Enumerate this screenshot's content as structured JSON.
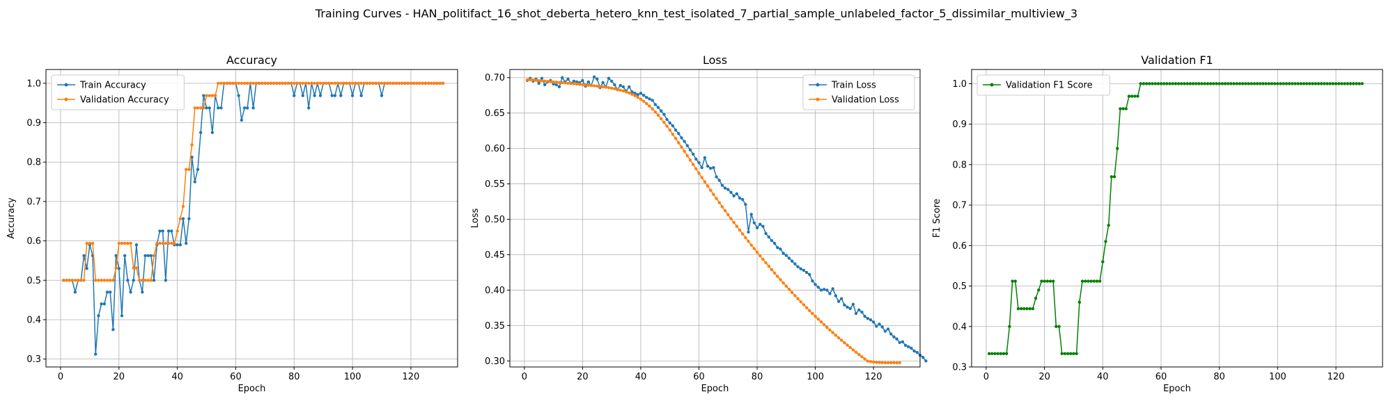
{
  "figure": {
    "suptitle": "Training Curves - HAN_politifact_16_shot_deberta_hetero_knn_test_isolated_7_partial_sample_unlabeled_factor_5_dissimilar_multiview_3"
  },
  "colors": {
    "blue": "#1f77b4",
    "orange": "#ff7f0e",
    "green": "#008000",
    "grid": "#b0b0b0"
  },
  "chart_data": [
    {
      "type": "line",
      "title": "Accuracy",
      "xlabel": "Epoch",
      "ylabel": "Accuracy",
      "xlim": [
        -5,
        136
      ],
      "ylim": [
        0.28,
        1.035
      ],
      "xticks": [
        0,
        20,
        40,
        60,
        80,
        100,
        120
      ],
      "yticks": [
        0.3,
        0.4,
        0.5,
        0.6,
        0.7,
        0.8,
        0.9,
        1.0
      ],
      "ytick_decimals": 1,
      "grid": true,
      "legend": "upper-left",
      "series": [
        {
          "name": "Train Accuracy",
          "color": "#1f77b4",
          "x_start": 1,
          "y": [
            0.5,
            0.5,
            0.5,
            0.5,
            0.47,
            0.5,
            0.5,
            0.5625,
            0.53,
            0.59,
            0.5625,
            0.3125,
            0.41,
            0.44,
            0.44,
            0.47,
            0.47,
            0.375,
            0.5625,
            0.53,
            0.41,
            0.5625,
            0.5,
            0.47,
            0.5,
            0.59,
            0.5,
            0.47,
            0.5625,
            0.5625,
            0.5625,
            0.5,
            0.59,
            0.625,
            0.625,
            0.5,
            0.625,
            0.625,
            0.59,
            0.59,
            0.59,
            0.6563,
            0.5938,
            0.6563,
            0.8125,
            0.75,
            0.7813,
            0.875,
            0.9688,
            0.9375,
            0.9375,
            0.875,
            0.9688,
            0.9375,
            0.9375,
            1,
            1,
            1,
            1,
            1,
            0.9688,
            0.9063,
            0.9375,
            0.9375,
            1,
            0.9375,
            1,
            1,
            1,
            1,
            1,
            1,
            1,
            1,
            1,
            1,
            1,
            1,
            1,
            0.9688,
            1,
            1,
            0.9688,
            1,
            0.9375,
            1,
            0.9688,
            1,
            0.9688,
            1,
            1,
            1,
            0.9688,
            0.9688,
            1,
            0.9688,
            1,
            1,
            1,
            0.9688,
            1,
            1,
            0.9688,
            1,
            1,
            1,
            1,
            1,
            1,
            0.9688,
            1,
            1,
            1,
            1,
            1,
            1,
            1,
            1,
            1,
            1,
            1,
            1,
            1,
            1,
            1,
            1,
            1,
            1,
            1,
            1,
            1
          ]
        },
        {
          "name": "Validation Accuracy",
          "color": "#ff7f0e",
          "x_start": 1,
          "y": [
            0.5,
            0.5,
            0.5,
            0.5,
            0.5,
            0.5,
            0.5,
            0.5,
            0.5938,
            0.5938,
            0.5938,
            0.5,
            0.5,
            0.5,
            0.5,
            0.5,
            0.5,
            0.5,
            0.5313,
            0.5938,
            0.5938,
            0.5938,
            0.5938,
            0.5938,
            0.5313,
            0.5313,
            0.5,
            0.5,
            0.5,
            0.5,
            0.5,
            0.5625,
            0.5938,
            0.5938,
            0.5938,
            0.5938,
            0.5938,
            0.5938,
            0.5938,
            0.625,
            0.6563,
            0.6875,
            0.7813,
            0.7813,
            0.8438,
            0.9375,
            0.9375,
            0.9375,
            0.9375,
            0.9688,
            0.9688,
            0.9688,
            0.9688,
            1,
            1,
            1,
            1,
            1,
            1,
            1,
            1,
            1,
            1,
            1,
            1,
            1,
            1,
            1,
            1,
            1,
            1,
            1,
            1,
            1,
            1,
            1,
            1,
            1,
            1,
            1,
            1,
            1,
            1,
            1,
            1,
            1,
            1,
            1,
            1,
            1,
            1,
            1,
            1,
            1,
            1,
            1,
            1,
            1,
            1,
            1,
            1,
            1,
            1,
            1,
            1,
            1,
            1,
            1,
            1,
            1,
            1,
            1,
            1,
            1,
            1,
            1,
            1,
            1,
            1,
            1,
            1,
            1,
            1,
            1,
            1,
            1,
            1,
            1,
            1,
            1,
            1
          ]
        }
      ]
    },
    {
      "type": "line",
      "title": "Loss",
      "xlabel": "Epoch",
      "ylabel": "Loss",
      "xlim": [
        -5,
        136
      ],
      "ylim": [
        0.2915,
        0.7115
      ],
      "xticks": [
        0,
        20,
        40,
        60,
        80,
        100,
        120
      ],
      "yticks": [
        0.3,
        0.35,
        0.4,
        0.45,
        0.5,
        0.55,
        0.6,
        0.65,
        0.7
      ],
      "ytick_decimals": 2,
      "grid": true,
      "legend": "upper-right",
      "series": [
        {
          "name": "Train Loss",
          "color": "#1f77b4",
          "x_start": 1,
          "y": [
            0.696,
            0.699,
            0.695,
            0.698,
            0.692,
            0.699,
            0.69,
            0.694,
            0.696,
            0.691,
            0.69,
            0.687,
            0.7,
            0.694,
            0.698,
            0.692,
            0.695,
            0.694,
            0.693,
            0.696,
            0.688,
            0.694,
            0.689,
            0.701,
            0.698,
            0.686,
            0.693,
            0.687,
            0.699,
            0.695,
            0.69,
            0.683,
            0.689,
            0.687,
            0.681,
            0.687,
            0.68,
            0.678,
            0.676,
            0.678,
            0.675,
            0.672,
            0.67,
            0.668,
            0.662,
            0.658,
            0.653,
            0.648,
            0.641,
            0.636,
            0.632,
            0.626,
            0.621,
            0.615,
            0.61,
            0.604,
            0.598,
            0.592,
            0.585,
            0.58,
            0.573,
            0.587,
            0.575,
            0.572,
            0.573,
            0.56,
            0.555,
            0.548,
            0.544,
            0.542,
            0.538,
            0.533,
            0.536,
            0.53,
            0.528,
            0.521,
            0.482,
            0.507,
            0.495,
            0.488,
            0.493,
            0.49,
            0.48,
            0.475,
            0.47,
            0.466,
            0.46,
            0.458,
            0.452,
            0.449,
            0.445,
            0.441,
            0.437,
            0.433,
            0.43,
            0.428,
            0.425,
            0.422,
            0.413,
            0.408,
            0.404,
            0.4,
            0.401,
            0.4,
            0.395,
            0.402,
            0.392,
            0.384,
            0.388,
            0.379,
            0.376,
            0.374,
            0.38,
            0.367,
            0.372,
            0.369,
            0.363,
            0.36,
            0.358,
            0.355,
            0.349,
            0.352,
            0.348,
            0.342,
            0.345,
            0.338,
            0.334,
            0.331,
            0.326,
            0.327,
            0.322,
            0.32,
            0.318,
            0.314,
            0.312,
            0.308,
            0.305,
            0.3
          ]
        },
        {
          "name": "Validation Loss",
          "color": "#ff7f0e",
          "x_start": 1,
          "y": [
            0.697,
            0.697,
            0.6966,
            0.6962,
            0.6958,
            0.6955,
            0.6951,
            0.6947,
            0.6943,
            0.6939,
            0.6936,
            0.6932,
            0.6928,
            0.6924,
            0.692,
            0.6917,
            0.6913,
            0.6909,
            0.6905,
            0.6901,
            0.6897,
            0.6893,
            0.6889,
            0.6885,
            0.688,
            0.6875,
            0.687,
            0.6864,
            0.6858,
            0.6851,
            0.6843,
            0.6834,
            0.6824,
            0.6812,
            0.6798,
            0.6783,
            0.6765,
            0.6745,
            0.6722,
            0.6696,
            0.6667,
            0.6634,
            0.6598,
            0.6558,
            0.6515,
            0.6469,
            0.642,
            0.6369,
            0.6315,
            0.6259,
            0.6201,
            0.6142,
            0.6082,
            0.6021,
            0.596,
            0.5898,
            0.5836,
            0.5774,
            0.5713,
            0.5651,
            0.559,
            0.553,
            0.547,
            0.541,
            0.5351,
            0.5293,
            0.5235,
            0.5178,
            0.5121,
            0.5065,
            0.501,
            0.4955,
            0.4901,
            0.4847,
            0.4794,
            0.4741,
            0.4689,
            0.4637,
            0.4586,
            0.4535,
            0.4485,
            0.4435,
            0.4386,
            0.4337,
            0.4289,
            0.4241,
            0.4194,
            0.4148,
            0.4102,
            0.4056,
            0.4011,
            0.3967,
            0.3923,
            0.3879,
            0.3836,
            0.3794,
            0.3752,
            0.3711,
            0.367,
            0.363,
            0.359,
            0.3551,
            0.3512,
            0.3474,
            0.3437,
            0.34,
            0.3363,
            0.3327,
            0.3292,
            0.3257,
            0.3223,
            0.3189,
            0.3156,
            0.3123,
            0.3091,
            0.3059,
            0.3028,
            0.2998,
            0.299,
            0.2985,
            0.298,
            0.2978,
            0.2976,
            0.2975,
            0.2975,
            0.2975,
            0.2975,
            0.2975,
            0.2975
          ]
        }
      ]
    },
    {
      "type": "line",
      "title": "Validation F1",
      "xlabel": "Epoch",
      "ylabel": "F1 Score",
      "xlim": [
        -5,
        136
      ],
      "ylim": [
        0.3,
        1.035
      ],
      "xticks": [
        0,
        20,
        40,
        60,
        80,
        100,
        120
      ],
      "yticks": [
        0.3,
        0.4,
        0.5,
        0.6,
        0.7,
        0.8,
        0.9,
        1.0
      ],
      "ytick_decimals": 1,
      "grid": true,
      "legend": "upper-left",
      "series": [
        {
          "name": "Validation F1 Score",
          "color": "#008000",
          "x_start": 1,
          "y": [
            0.333,
            0.333,
            0.333,
            0.333,
            0.333,
            0.333,
            0.333,
            0.4,
            0.512,
            0.512,
            0.444,
            0.444,
            0.444,
            0.444,
            0.444,
            0.444,
            0.47,
            0.49,
            0.512,
            0.512,
            0.512,
            0.512,
            0.512,
            0.4,
            0.4,
            0.333,
            0.333,
            0.333,
            0.333,
            0.333,
            0.333,
            0.46,
            0.512,
            0.512,
            0.512,
            0.512,
            0.512,
            0.512,
            0.512,
            0.56,
            0.61,
            0.65,
            0.77,
            0.77,
            0.84,
            0.938,
            0.938,
            0.938,
            0.969,
            0.969,
            0.969,
            0.969,
            1,
            1,
            1,
            1,
            1,
            1,
            1,
            1,
            1,
            1,
            1,
            1,
            1,
            1,
            1,
            1,
            1,
            1,
            1,
            1,
            1,
            1,
            1,
            1,
            1,
            1,
            1,
            1,
            1,
            1,
            1,
            1,
            1,
            1,
            1,
            1,
            1,
            1,
            1,
            1,
            1,
            1,
            1,
            1,
            1,
            1,
            1,
            1,
            1,
            1,
            1,
            1,
            1,
            1,
            1,
            1,
            1,
            1,
            1,
            1,
            1,
            1,
            1,
            1,
            1,
            1,
            1,
            1,
            1,
            1,
            1,
            1,
            1,
            1,
            1,
            1,
            1
          ]
        }
      ]
    }
  ]
}
